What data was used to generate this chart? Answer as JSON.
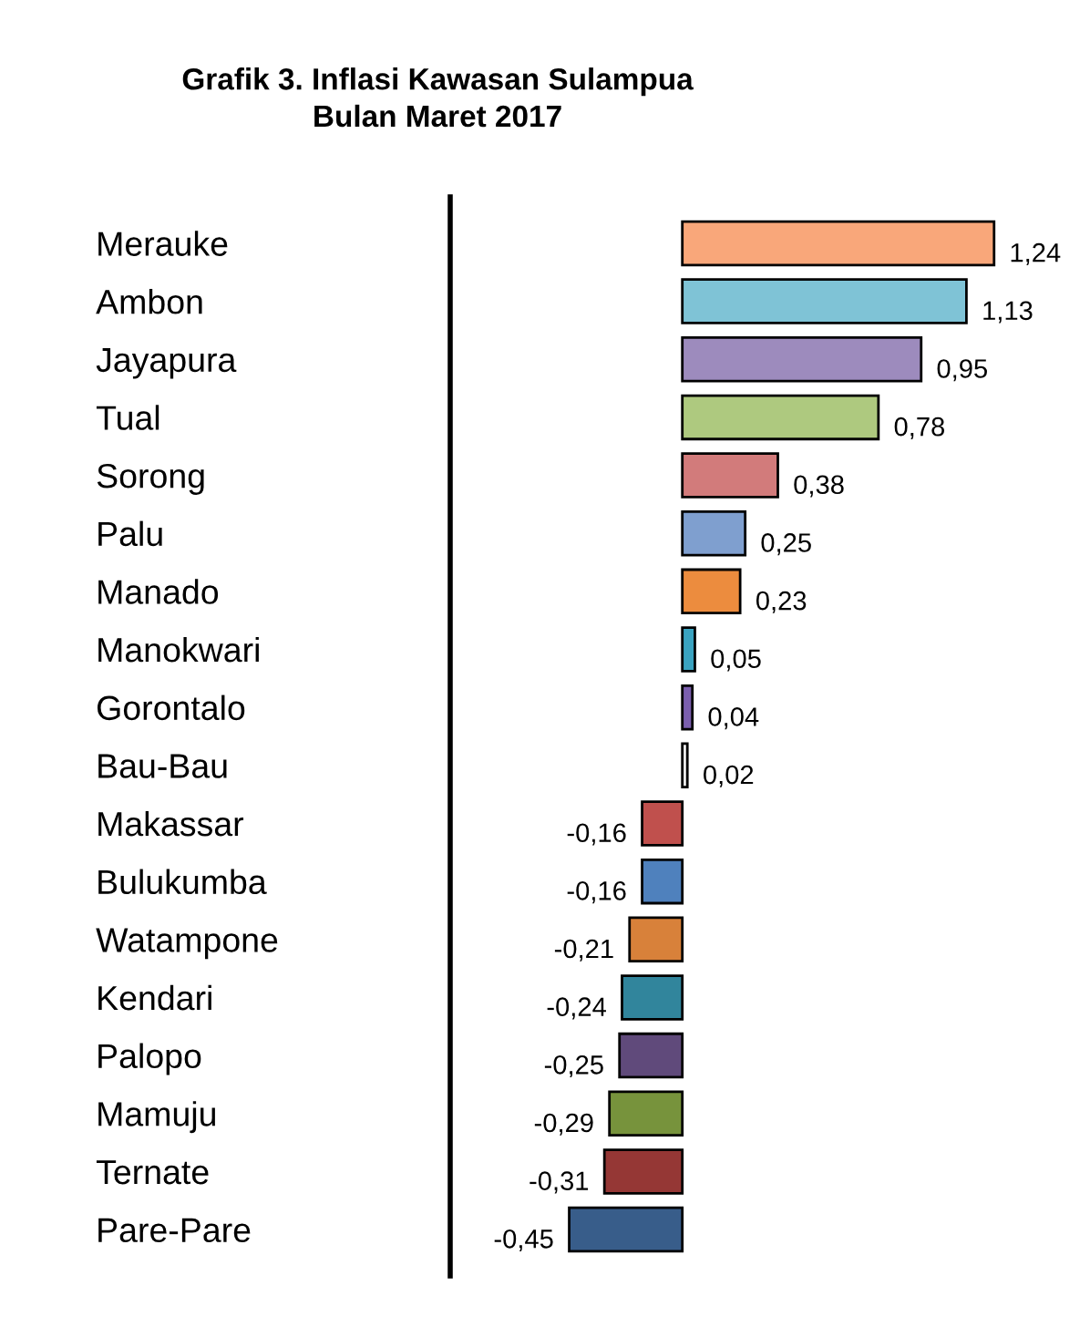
{
  "chart_data": {
    "type": "bar",
    "orientation": "horizontal",
    "title": "Grafik 3. Inflasi Kawasan Sulampua\nBulan Maret 2017",
    "categories": [
      "Merauke",
      "Ambon",
      "Jayapura",
      "Tual",
      "Sorong",
      "Palu",
      "Manado",
      "Manokwari",
      "Gorontalo",
      "Bau-Bau",
      "Makassar",
      "Bulukumba",
      "Watampone",
      "Kendari",
      "Palopo",
      "Mamuju",
      "Ternate",
      "Pare-Pare"
    ],
    "values": [
      1.24,
      1.13,
      0.95,
      0.78,
      0.38,
      0.25,
      0.23,
      0.05,
      0.04,
      0.02,
      -0.16,
      -0.16,
      -0.21,
      -0.24,
      -0.25,
      -0.29,
      -0.31,
      -0.45
    ],
    "colors": [
      "#f9a77a",
      "#7fc3d6",
      "#9d8bbd",
      "#aec97f",
      "#d27b7b",
      "#7f9fcf",
      "#ec8c3e",
      "#3aa3c0",
      "#7b5fae",
      "#f0f0f0",
      "#c0504d",
      "#4f81bd",
      "#d8813a",
      "#31859c",
      "#604a7b",
      "#77933c",
      "#953735",
      "#385d8a"
    ],
    "value_labels": [
      "1,24",
      "1,13",
      "0,95",
      "0,78",
      "0,38",
      "0,25",
      "0,23",
      "0,05",
      "0,04",
      "0,02",
      "-0,16",
      "-0,16",
      "-0,21",
      "-0,24",
      "-0,25",
      "-0,29",
      "-0,31",
      "-0,45"
    ],
    "grid": false,
    "legend": false
  }
}
